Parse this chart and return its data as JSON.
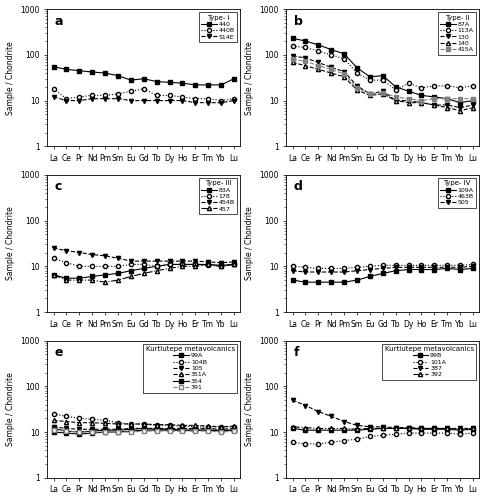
{
  "elements": [
    "La",
    "Ce",
    "Pr",
    "Nd",
    "Pm",
    "Sm",
    "Eu",
    "Gd",
    "Tb",
    "Dy",
    "Ho",
    "Er",
    "Tm",
    "Yb",
    "Lu"
  ],
  "panels": [
    {
      "label": "a",
      "title": "Type- I",
      "series": [
        {
          "name": "440",
          "marker": "s",
          "linestyle": "-",
          "color": "black",
          "fillstyle": "full",
          "values": [
            55,
            48,
            45,
            42,
            40,
            35,
            28,
            30,
            26,
            25,
            24,
            22,
            22,
            22,
            30
          ]
        },
        {
          "name": "440B",
          "marker": "o",
          "linestyle": ":",
          "color": "black",
          "fillstyle": "none",
          "values": [
            18,
            11,
            12,
            13,
            13,
            14,
            16,
            18,
            13,
            13,
            12,
            11,
            11,
            10,
            11
          ]
        },
        {
          "name": "514E",
          "marker": "v",
          "linestyle": "--",
          "color": "black",
          "fillstyle": "full",
          "values": [
            12,
            10,
            10,
            11,
            11,
            11,
            10,
            10,
            10,
            10,
            10,
            9,
            9,
            9,
            10
          ]
        }
      ]
    },
    {
      "label": "b",
      "title": "Type- II",
      "series": [
        {
          "name": "87A",
          "marker": "s",
          "linestyle": "-",
          "color": "black",
          "fillstyle": "full",
          "values": [
            230,
            200,
            165,
            130,
            105,
            52,
            33,
            35,
            20,
            16,
            13,
            12,
            11,
            9,
            10
          ]
        },
        {
          "name": "113A",
          "marker": "o",
          "linestyle": ":",
          "color": "black",
          "fillstyle": "none",
          "values": [
            155,
            145,
            120,
            100,
            82,
            40,
            28,
            28,
            17,
            24,
            19,
            21,
            21,
            19,
            21
          ]
        },
        {
          "name": "130",
          "marker": "v",
          "linestyle": "--",
          "color": "black",
          "fillstyle": "full",
          "values": [
            95,
            85,
            68,
            53,
            43,
            21,
            14,
            16,
            10,
            10,
            9,
            8,
            8,
            7,
            8
          ]
        },
        {
          "name": "140",
          "marker": "^",
          "linestyle": "--",
          "color": "black",
          "fillstyle": "none",
          "values": [
            68,
            58,
            48,
            40,
            33,
            17,
            13,
            14,
            10,
            9,
            9,
            8,
            7,
            6,
            7
          ]
        },
        {
          "name": "415A",
          "marker": "s",
          "linestyle": "--",
          "color": "gray",
          "fillstyle": "full",
          "values": [
            80,
            72,
            58,
            48,
            38,
            19,
            14,
            15,
            12,
            11,
            10,
            11,
            11,
            11,
            11
          ]
        }
      ]
    },
    {
      "label": "c",
      "title": "Type- III",
      "series": [
        {
          "name": "83A",
          "marker": "s",
          "linestyle": "-",
          "color": "black",
          "fillstyle": "full",
          "values": [
            6.5,
            5.5,
            5.5,
            6.0,
            6.5,
            7.0,
            8.0,
            9.0,
            10.0,
            11.0,
            11.0,
            11.0,
            11.0,
            10.5,
            11.0
          ]
        },
        {
          "name": "178",
          "marker": "o",
          "linestyle": ":",
          "color": "black",
          "fillstyle": "none",
          "values": [
            15.0,
            12.0,
            10.0,
            10.0,
            10.0,
            10.0,
            11.0,
            11.0,
            10.0,
            11.0,
            11.0,
            11.0,
            10.5,
            10.0,
            11.0
          ]
        },
        {
          "name": "454B",
          "marker": "v",
          "linestyle": "--",
          "color": "black",
          "fillstyle": "full",
          "values": [
            25.0,
            22.0,
            20.0,
            18.0,
            17.0,
            15.0,
            13.0,
            13.0,
            13.0,
            13.0,
            13.0,
            13.0,
            12.5,
            12.0,
            12.5
          ]
        },
        {
          "name": "457",
          "marker": "^",
          "linestyle": "-.",
          "color": "black",
          "fillstyle": "none",
          "values": [
            6.5,
            5.0,
            5.0,
            5.0,
            4.5,
            5.0,
            6.0,
            7.0,
            8.0,
            9.0,
            10.0,
            10.0,
            11.0,
            10.0,
            11.0
          ]
        }
      ]
    },
    {
      "label": "d",
      "title": "Type- IV",
      "series": [
        {
          "name": "109A",
          "marker": "s",
          "linestyle": "-",
          "color": "black",
          "fillstyle": "full",
          "values": [
            5.0,
            4.5,
            4.5,
            4.5,
            4.5,
            5.0,
            6.0,
            7.0,
            8.0,
            8.5,
            8.5,
            8.5,
            9.0,
            8.5,
            9.0
          ]
        },
        {
          "name": "463B",
          "marker": "o",
          "linestyle": ":",
          "color": "black",
          "fillstyle": "none",
          "values": [
            10.0,
            9.5,
            9.0,
            9.0,
            9.0,
            9.5,
            10.0,
            10.5,
            10.5,
            10.5,
            10.5,
            10.5,
            10.5,
            10.5,
            11.0
          ]
        },
        {
          "name": "505",
          "marker": "v",
          "linestyle": "--",
          "color": "black",
          "fillstyle": "full",
          "values": [
            8.0,
            7.5,
            7.5,
            7.5,
            7.5,
            8.0,
            8.5,
            9.0,
            9.5,
            9.5,
            9.5,
            9.5,
            9.5,
            9.5,
            10.0
          ]
        }
      ]
    },
    {
      "label": "e",
      "title": "Kurtlutepe metavolcanics",
      "series": [
        {
          "name": "99A",
          "marker": "s",
          "linestyle": "-",
          "color": "black",
          "fillstyle": "full",
          "values": [
            12.0,
            10.5,
            10.0,
            10.5,
            11.0,
            11.0,
            11.5,
            12.0,
            11.5,
            11.5,
            11.0,
            11.0,
            11.0,
            11.0,
            11.0
          ]
        },
        {
          "name": "104B",
          "marker": "o",
          "linestyle": ":",
          "color": "black",
          "fillstyle": "none",
          "values": [
            25.0,
            22.0,
            20.0,
            19.0,
            18.0,
            16.0,
            15.0,
            15.0,
            14.0,
            14.0,
            13.5,
            13.0,
            13.0,
            13.0,
            13.0
          ]
        },
        {
          "name": "105",
          "marker": "v",
          "linestyle": "--",
          "color": "black",
          "fillstyle": "full",
          "values": [
            13.0,
            12.0,
            11.5,
            11.5,
            11.5,
            11.5,
            12.0,
            12.0,
            12.0,
            12.0,
            12.0,
            12.0,
            12.0,
            11.5,
            12.0
          ]
        },
        {
          "name": "351A",
          "marker": "^",
          "linestyle": "--",
          "color": "black",
          "fillstyle": "none",
          "values": [
            18.0,
            17.0,
            16.0,
            16.0,
            15.5,
            15.0,
            15.0,
            15.0,
            14.5,
            14.5,
            14.0,
            14.0,
            13.5,
            13.0,
            13.5
          ]
        },
        {
          "name": "354",
          "marker": "s",
          "linestyle": "-",
          "color": "black",
          "fillstyle": "full",
          "values": [
            10.0,
            9.5,
            9.0,
            9.5,
            10.0,
            10.0,
            10.5,
            11.0,
            11.0,
            11.0,
            11.0,
            11.0,
            11.0,
            10.5,
            11.0
          ]
        },
        {
          "name": "391",
          "marker": "s",
          "linestyle": "--",
          "color": "gray",
          "fillstyle": "none",
          "values": [
            11.0,
            10.5,
            10.0,
            10.0,
            10.0,
            10.0,
            10.0,
            10.5,
            10.5,
            10.5,
            10.5,
            10.5,
            10.5,
            10.0,
            10.5
          ]
        }
      ]
    },
    {
      "label": "f",
      "title": "Kurtlutepe metavolcanics",
      "series": [
        {
          "name": "99B",
          "marker": "s",
          "linestyle": "-",
          "color": "black",
          "fillstyle": "full",
          "values": [
            12.0,
            11.0,
            11.0,
            11.0,
            11.0,
            11.0,
            11.5,
            12.0,
            12.0,
            12.0,
            11.5,
            11.5,
            11.5,
            11.0,
            11.5
          ]
        },
        {
          "name": "101A",
          "marker": "o",
          "linestyle": ":",
          "color": "black",
          "fillstyle": "none",
          "values": [
            6.0,
            5.5,
            5.5,
            6.0,
            6.5,
            7.0,
            8.0,
            8.5,
            9.0,
            9.5,
            9.5,
            9.5,
            9.5,
            9.0,
            9.5
          ]
        },
        {
          "name": "387",
          "marker": "v",
          "linestyle": "--",
          "color": "black",
          "fillstyle": "full",
          "values": [
            50.0,
            38.0,
            28.0,
            22.0,
            17.0,
            14.0,
            13.0,
            13.0,
            12.5,
            12.5,
            12.0,
            12.0,
            12.0,
            12.0,
            12.0
          ]
        },
        {
          "name": "392",
          "marker": "^",
          "linestyle": "-.",
          "color": "black",
          "fillstyle": "none",
          "values": [
            13.0,
            12.5,
            12.0,
            12.0,
            12.0,
            11.5,
            12.0,
            12.0,
            12.0,
            12.0,
            12.0,
            12.0,
            12.0,
            11.5,
            12.0
          ]
        }
      ]
    }
  ],
  "ylabel": "Sample / Chondrite",
  "ylim_log": [
    1,
    1000
  ],
  "fig_bgcolor": "white",
  "panel_bg": "white"
}
